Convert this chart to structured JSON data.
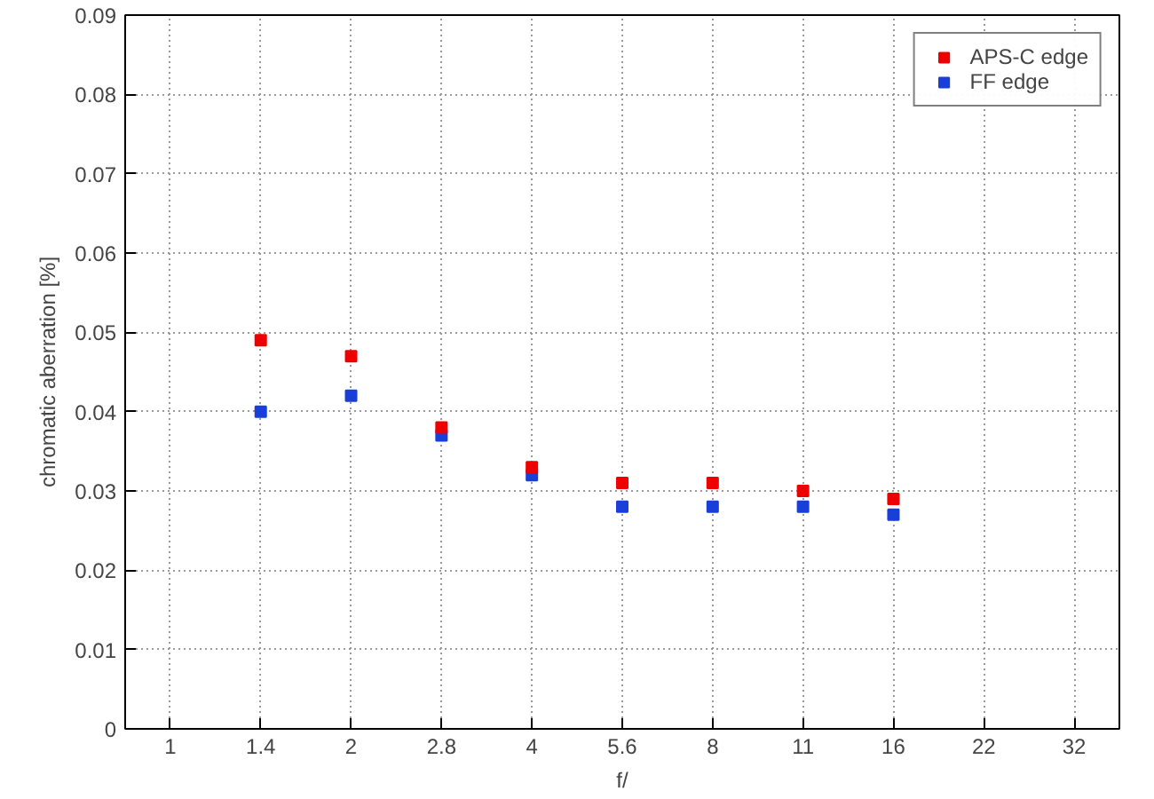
{
  "chart_data": {
    "type": "scatter",
    "xlabel": "f/",
    "ylabel": "chromatic aberration [%]",
    "categories": [
      "1",
      "1.4",
      "2",
      "2.8",
      "4",
      "5.6",
      "8",
      "11",
      "16",
      "22",
      "32"
    ],
    "series": [
      {
        "name": "APS-C edge",
        "color": "#ee0000",
        "values": [
          null,
          0.049,
          0.047,
          0.038,
          0.033,
          0.031,
          0.031,
          0.03,
          0.029,
          null,
          null
        ]
      },
      {
        "name": "FF edge",
        "color": "#1a3fd8",
        "values": [
          null,
          0.04,
          0.042,
          0.037,
          0.032,
          0.028,
          0.028,
          0.028,
          0.027,
          null,
          null
        ]
      }
    ],
    "ylim": [
      0,
      0.09
    ],
    "yticks": [
      0,
      0.01,
      0.02,
      0.03,
      0.04,
      0.05,
      0.06,
      0.07,
      0.08,
      0.09
    ],
    "grid": true,
    "legend": "top right",
    "marker": "square"
  }
}
